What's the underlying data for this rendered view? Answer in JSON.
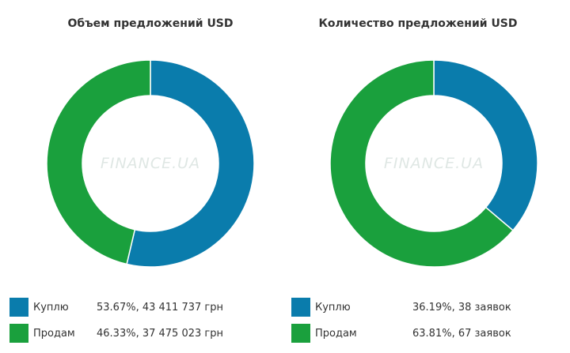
{
  "colors": {
    "buy": "#0a7cac",
    "sell": "#1aa03d"
  },
  "watermark": "FINANCE.UA",
  "chart_data": [
    {
      "type": "pie",
      "title": "Объем предложений USD",
      "slices": [
        {
          "label": "Куплю",
          "percent": 53.67,
          "value_text": "53.67%, 43 411 737 грн"
        },
        {
          "label": "Продам",
          "percent": 46.33,
          "value_text": "46.33%, 37 475 023 грн"
        }
      ]
    },
    {
      "type": "pie",
      "title": "Количество предложений USD",
      "slices": [
        {
          "label": "Куплю",
          "percent": 36.19,
          "value_text": "36.19%, 38 заявок"
        },
        {
          "label": "Продам",
          "percent": 63.81,
          "value_text": "63.81%, 67 заявок"
        }
      ]
    }
  ]
}
